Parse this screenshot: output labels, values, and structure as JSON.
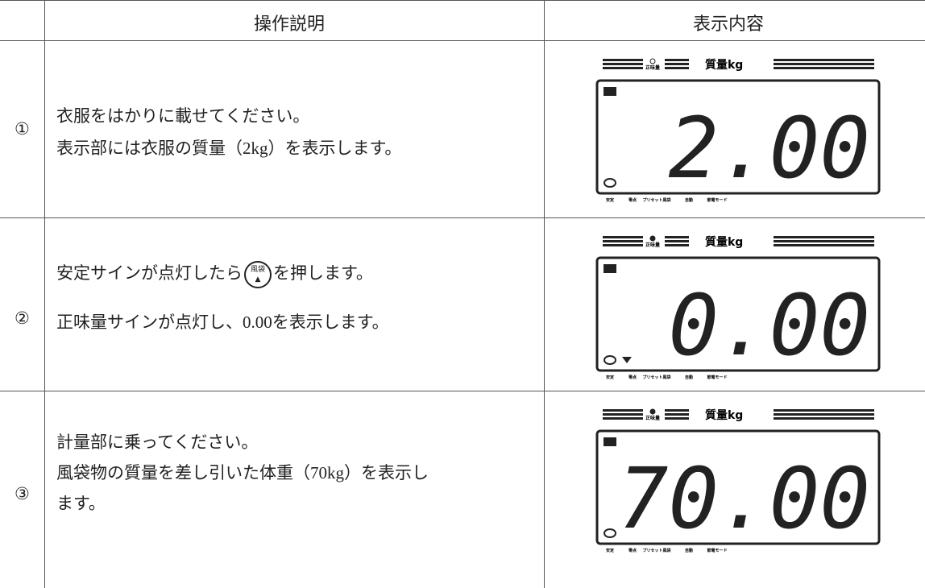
{
  "table": {
    "header": {
      "description": "操作説明",
      "display": "表示内容"
    },
    "lcd_labels": {
      "net": "正味量",
      "unit": "質量kg",
      "stable": "安定",
      "zero": "零点",
      "preset_tare": "プリセット風袋",
      "auto": "自動",
      "power_save": "節電モード"
    },
    "rows": [
      {
        "step": "①",
        "lines": [
          "衣服をはかりに載せてください。",
          "表示部には衣服の質量（2kg）を表示します。"
        ],
        "reading": "2.00"
      },
      {
        "step": "②",
        "line1_before": "安定サインが点灯したら",
        "button_label": "風袋",
        "line1_after": "を押します。",
        "lines": [
          "正味量サインが点灯し、0.00を表示します。"
        ],
        "reading": "0.00"
      },
      {
        "step": "③",
        "lines": [
          "計量部に乗ってください。",
          "風袋物の質量を差し引いた体重（70kg）を表示し",
          "ます。"
        ],
        "reading": "70.00"
      }
    ]
  }
}
